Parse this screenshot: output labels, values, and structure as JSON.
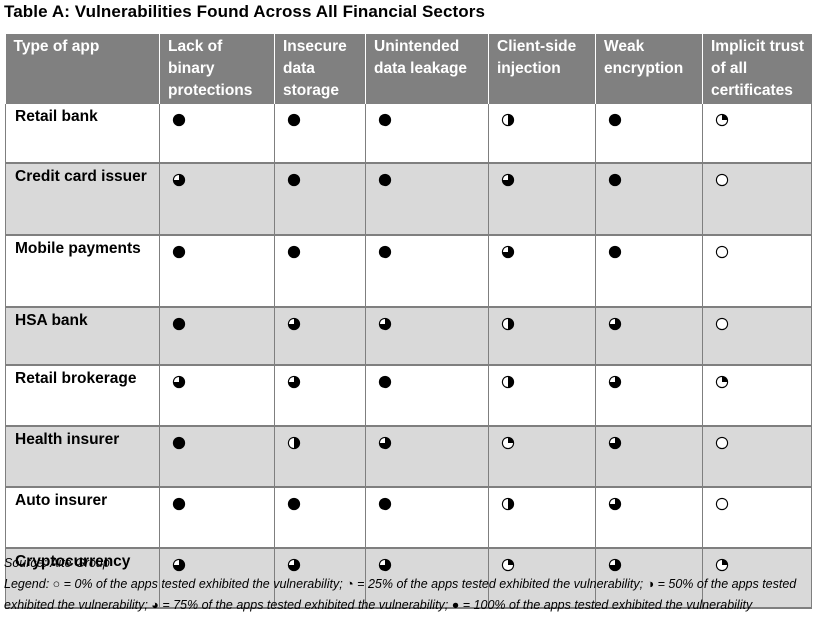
{
  "title": "Table A: Vulnerabilities Found Across All Financial Sectors",
  "columns": [
    "Type of app",
    "Lack of binary protections",
    "Insecure data storage",
    "Unintended data leakage",
    "Client-side injection",
    "Weak encryption",
    "Implicit trust of all certificates"
  ],
  "rows": [
    {
      "label": "Retail bank",
      "levels": [
        100,
        100,
        100,
        50,
        100,
        25
      ]
    },
    {
      "label": "Credit card issuer",
      "levels": [
        75,
        100,
        100,
        75,
        100,
        0
      ]
    },
    {
      "label": "Mobile payments",
      "levels": [
        100,
        100,
        100,
        75,
        100,
        0
      ]
    },
    {
      "label": "HSA bank",
      "levels": [
        100,
        75,
        75,
        50,
        75,
        0
      ]
    },
    {
      "label": "Retail brokerage",
      "levels": [
        75,
        75,
        100,
        50,
        75,
        25
      ]
    },
    {
      "label": "Health insurer",
      "levels": [
        100,
        50,
        75,
        25,
        75,
        0
      ]
    },
    {
      "label": "Auto insurer",
      "levels": [
        100,
        100,
        100,
        50,
        75,
        0
      ]
    },
    {
      "label": "Cryptocurrency",
      "levels": [
        75,
        75,
        75,
        25,
        75,
        25
      ]
    }
  ],
  "source": "Source: Aite Group",
  "legend": "Legend: ○ = 0% of the apps tested exhibited the vulnerability; ◔ = 25% of the apps tested exhibited the vulnerability; ◑ = 50% of the apps tested exhibited the vulnerability; ◕ = 75% of the apps tested exhibited the vulnerability; ● = 100% of the apps tested exhibited the vulnerability",
  "colors": {
    "header_bg": "#808080",
    "shaded_row": "#d9d9d9",
    "border": "#7f7f7f"
  }
}
